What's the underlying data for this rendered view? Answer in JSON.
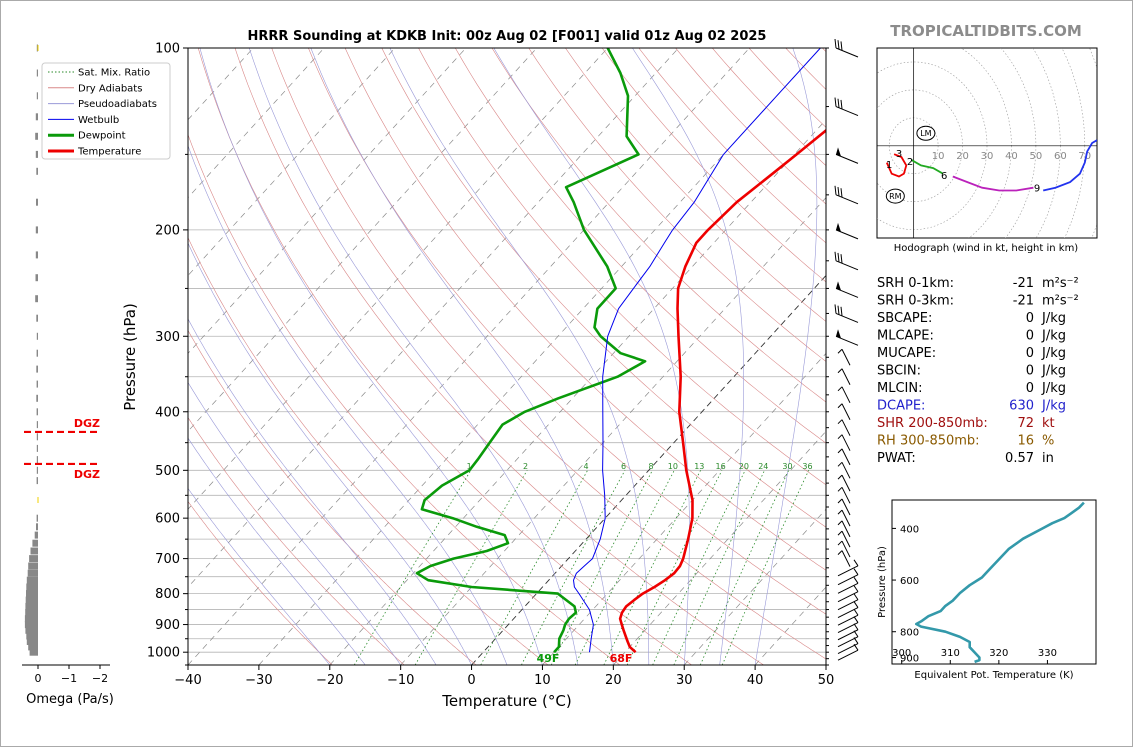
{
  "title": "HRRR Sounding at KDKB Init: 00z Aug 02 [F001] valid 01z Aug 02 2025",
  "brand": "TROPICALTIDBITS.COM",
  "skewt": {
    "xlabel": "Temperature (°C)",
    "ylabel": "Pressure (hPa)",
    "xlim": [
      -40,
      50
    ],
    "ylim": [
      1050,
      100
    ],
    "x_ticks": [
      "−40",
      "−30",
      "−20",
      "−10",
      "0",
      "10",
      "20",
      "30",
      "40",
      "50"
    ],
    "y_ticks": [
      "100",
      "200",
      "300",
      "400",
      "500",
      "600",
      "700",
      "800",
      "900",
      "1000"
    ],
    "mixing_ratio_labels": [
      "1",
      "2",
      "4",
      "6",
      "8",
      "10",
      "13",
      "16",
      "20",
      "24",
      "30",
      "36"
    ],
    "surface_dewpoint_label": "49F",
    "surface_temperature_label": "68F"
  },
  "legend": {
    "placement": "upper-left",
    "items": [
      {
        "label": "Sat. Mix. Ratio",
        "color": "#2a8a2a",
        "style": "dotted",
        "width": 1
      },
      {
        "label": "Dry Adiabats",
        "color": "#d98888",
        "style": "solid",
        "width": 1
      },
      {
        "label": "Pseudoadiabats",
        "color": "#9a9ad8",
        "style": "solid",
        "width": 1
      },
      {
        "label": "Wetbulb",
        "color": "#0000ee",
        "style": "solid",
        "width": 1
      },
      {
        "label": "Dewpoint",
        "color": "#0a9a0a",
        "style": "solid",
        "width": 3
      },
      {
        "label": "Temperature",
        "color": "#ee0000",
        "style": "solid",
        "width": 3
      }
    ]
  },
  "omega": {
    "xlabel": "Omega (Pa/s)",
    "x_ticks": [
      "0",
      "−1",
      "−2"
    ],
    "dgz_label": "DGZ",
    "dgz_pressures_hpa": [
      432,
      488
    ]
  },
  "hodograph": {
    "caption": "Hodograph (wind in kt, height in km)",
    "ring_labels": [
      "10",
      "20",
      "30",
      "40",
      "50",
      "60",
      "70"
    ],
    "height_labels": [
      "1",
      "2",
      "3",
      "6",
      "9"
    ],
    "storm_motion_labels": [
      "LM",
      "RM"
    ]
  },
  "indices": [
    {
      "name": "SRH 0-1km:",
      "value": "-21",
      "unit": "m²s⁻²",
      "color": "#000000"
    },
    {
      "name": "SRH 0-3km:",
      "value": "-21",
      "unit": "m²s⁻²",
      "color": "#000000"
    },
    {
      "name": "SBCAPE:",
      "value": "0",
      "unit": "J/kg",
      "color": "#000000"
    },
    {
      "name": "MLCAPE:",
      "value": "0",
      "unit": "J/kg",
      "color": "#000000"
    },
    {
      "name": "MUCAPE:",
      "value": "0",
      "unit": "J/kg",
      "color": "#000000"
    },
    {
      "name": "SBCIN:",
      "value": "0",
      "unit": "J/kg",
      "color": "#000000"
    },
    {
      "name": "MLCIN:",
      "value": "0",
      "unit": "J/kg",
      "color": "#000000"
    },
    {
      "name": "DCAPE:",
      "value": "630",
      "unit": "J/kg",
      "color": "#2222cc"
    },
    {
      "name": "SHR 200-850mb:",
      "value": "72",
      "unit": "kt",
      "color": "#a01010"
    },
    {
      "name": "RH 300-850mb:",
      "value": "16",
      "unit": "%",
      "color": "#8a5a00"
    },
    {
      "name": "PWAT:",
      "value": "0.57",
      "unit": "in",
      "color": "#000000"
    }
  ],
  "theta_e": {
    "xlabel": "Equivalent Pot. Temperature (K)",
    "ylabel": "Pressure (hPa)",
    "x_ticks": [
      "300",
      "310",
      "320",
      "330"
    ],
    "y_ticks": [
      "400",
      "600",
      "800",
      "900"
    ],
    "xlim": [
      298,
      340
    ],
    "ylim": [
      925,
      290
    ]
  },
  "chart_data": [
    {
      "type": "line",
      "title": "HRRR Sounding at KDKB Init: 00z Aug 02 [F001] valid 01z Aug 02 2025",
      "xlabel": "Temperature (°C)",
      "ylabel": "Pressure (hPa)",
      "xlim": [
        -40,
        50
      ],
      "ylim": [
        1050,
        100
      ],
      "y_scale": "log",
      "grid": true,
      "legend_placement": "upper-left",
      "series": [
        {
          "name": "Temperature",
          "color": "#ee0000",
          "points": [
            [
              1000,
              21.5
            ],
            [
              980,
              20
            ],
            [
              960,
              19
            ],
            [
              940,
              18
            ],
            [
              920,
              17
            ],
            [
              900,
              16
            ],
            [
              880,
              15
            ],
            [
              860,
              14.5
            ],
            [
              840,
              14.3
            ],
            [
              820,
              14.6
            ],
            [
              800,
              15
            ],
            [
              780,
              15.8
            ],
            [
              760,
              16.4
            ],
            [
              740,
              16.8
            ],
            [
              720,
              16.7
            ],
            [
              700,
              16.2
            ],
            [
              650,
              14.4
            ],
            [
              600,
              12.3
            ],
            [
              560,
              10
            ],
            [
              500,
              5.3
            ],
            [
              450,
              1.3
            ],
            [
              400,
              -3.2
            ],
            [
              350,
              -7.5
            ],
            [
              300,
              -13
            ],
            [
              270,
              -16.7
            ],
            [
              250,
              -19.2
            ],
            [
              230,
              -21
            ],
            [
              210,
              -22.5
            ],
            [
              200,
              -22.5
            ],
            [
              180,
              -22
            ],
            [
              160,
              -20.5
            ],
            [
              150,
              -19.7
            ],
            [
              130,
              -18
            ],
            [
              120,
              -17
            ],
            [
              110,
              -16.4
            ],
            [
              100,
              -15.6
            ]
          ]
        },
        {
          "name": "Dewpoint",
          "color": "#0a9a0a",
          "points": [
            [
              1000,
              10
            ],
            [
              980,
              10
            ],
            [
              950,
              9
            ],
            [
              920,
              8.5
            ],
            [
              900,
              8
            ],
            [
              880,
              7.8
            ],
            [
              860,
              8
            ],
            [
              840,
              7
            ],
            [
              800,
              3
            ],
            [
              780,
              -10
            ],
            [
              760,
              -17
            ],
            [
              740,
              -19.5
            ],
            [
              720,
              -18.5
            ],
            [
              700,
              -16.2
            ],
            [
              680,
              -12.5
            ],
            [
              660,
              -10.5
            ],
            [
              640,
              -12
            ],
            [
              620,
              -17
            ],
            [
              600,
              -21.5
            ],
            [
              580,
              -27
            ],
            [
              560,
              -27.8
            ],
            [
              530,
              -27.2
            ],
            [
              500,
              -25.3
            ],
            [
              480,
              -25.5
            ],
            [
              450,
              -26
            ],
            [
              420,
              -26.5
            ],
            [
              400,
              -25
            ],
            [
              380,
              -22
            ],
            [
              350,
              -16.4
            ],
            [
              330,
              -14.5
            ],
            [
              320,
              -19
            ],
            [
              300,
              -24
            ],
            [
              290,
              -26
            ],
            [
              270,
              -28
            ],
            [
              250,
              -28
            ],
            [
              230,
              -32
            ],
            [
              200,
              -40
            ],
            [
              180,
              -45
            ],
            [
              170,
              -48
            ],
            [
              150,
              -42
            ],
            [
              140,
              -46
            ],
            [
              120,
              -51
            ],
            [
              110,
              -55
            ],
            [
              100,
              -60
            ]
          ]
        },
        {
          "name": "Wetbulb",
          "color": "#0000ee",
          "points": [
            [
              1000,
              15
            ],
            [
              950,
              13.5
            ],
            [
              900,
              12
            ],
            [
              850,
              9.5
            ],
            [
              800,
              6
            ],
            [
              780,
              4.5
            ],
            [
              760,
              3.5
            ],
            [
              740,
              3
            ],
            [
              720,
              3.2
            ],
            [
              700,
              3.4
            ],
            [
              650,
              2
            ],
            [
              600,
              0
            ],
            [
              550,
              -3
            ],
            [
              500,
              -6.5
            ],
            [
              450,
              -10
            ],
            [
              400,
              -14
            ],
            [
              350,
              -18.5
            ],
            [
              300,
              -23
            ],
            [
              270,
              -25
            ],
            [
              250,
              -25.5
            ],
            [
              230,
              -26
            ],
            [
              210,
              -27
            ],
            [
              200,
              -27.5
            ],
            [
              180,
              -28
            ],
            [
              150,
              -30
            ],
            [
              120,
              -30
            ],
            [
              100,
              -30
            ]
          ]
        }
      ]
    },
    {
      "type": "line",
      "xlabel": "Equivalent Pot. Temperature (K)",
      "ylabel": "Pressure (hPa)",
      "xlim": [
        298,
        340
      ],
      "ylim": [
        925,
        290
      ],
      "series": [
        {
          "name": "",
          "color": "#3399aa",
          "points": [
            [
              917,
              315
            ],
            [
              910,
              316
            ],
            [
              900,
              316
            ],
            [
              880,
              315
            ],
            [
              860,
              314
            ],
            [
              840,
              314
            ],
            [
              820,
              312
            ],
            [
              800,
              309
            ],
            [
              780,
              304
            ],
            [
              770,
              303
            ],
            [
              760,
              304
            ],
            [
              740,
              305.5
            ],
            [
              720,
              308
            ],
            [
              700,
              309
            ],
            [
              680,
              310.5
            ],
            [
              650,
              312
            ],
            [
              620,
              314
            ],
            [
              590,
              316.5
            ],
            [
              560,
              318
            ],
            [
              520,
              320
            ],
            [
              480,
              322
            ],
            [
              440,
              325
            ],
            [
              400,
              329
            ],
            [
              380,
              331
            ],
            [
              360,
              333.5
            ],
            [
              340,
              335
            ],
            [
              320,
              336.5
            ],
            [
              300,
              337.5
            ]
          ]
        }
      ]
    },
    {
      "type": "line",
      "title": "Hodograph (wind in kt, height in km)",
      "xlim": [
        -15,
        75
      ],
      "ylim": [
        -33,
        35
      ],
      "series": [
        {
          "name": "",
          "color": "#ee0000",
          "points": [
            [
              -11,
              -6
            ],
            [
              -9,
              -10
            ],
            [
              -6,
              -11
            ],
            [
              -4,
              -10
            ],
            [
              -3,
              -7
            ],
            [
              -5,
              -4
            ],
            [
              -8,
              -3
            ]
          ]
        },
        {
          "name": "",
          "color": "#22aa22",
          "points": [
            [
              -1,
              -5
            ],
            [
              3,
              -7
            ],
            [
              8,
              -8
            ],
            [
              12,
              -10
            ]
          ]
        },
        {
          "name": "",
          "color": "#bb22bb",
          "points": [
            [
              16,
              -11
            ],
            [
              22,
              -13
            ],
            [
              28,
              -15
            ],
            [
              35,
              -16
            ],
            [
              42,
              -16
            ],
            [
              49,
              -15
            ]
          ]
        },
        {
          "name": "",
          "color": "#2233ee",
          "points": [
            [
              53,
              -16
            ],
            [
              58,
              -15
            ],
            [
              64,
              -13
            ],
            [
              68,
              -10
            ],
            [
              70,
              -6
            ],
            [
              71,
              -2
            ],
            [
              73,
              1
            ],
            [
              75,
              2
            ]
          ]
        }
      ]
    },
    {
      "type": "bar",
      "xlabel": "Omega (Pa/s)",
      "x_ticks": [
        "0",
        "−1",
        "−2"
      ],
      "series": [
        {
          "name": "",
          "color": "#888888",
          "points": [
            [
              1000,
              0.3
            ],
            [
              980,
              0.35
            ],
            [
              960,
              0.4
            ],
            [
              940,
              0.42
            ],
            [
              920,
              0.45
            ],
            [
              900,
              0.47
            ],
            [
              880,
              0.47
            ],
            [
              860,
              0.46
            ],
            [
              840,
              0.45
            ],
            [
              820,
              0.44
            ],
            [
              800,
              0.43
            ],
            [
              780,
              0.42
            ],
            [
              760,
              0.4
            ],
            [
              740,
              0.37
            ],
            [
              720,
              0.35
            ],
            [
              700,
              0.32
            ],
            [
              680,
              0.27
            ],
            [
              660,
              0.2
            ],
            [
              640,
              0.12
            ],
            [
              620,
              0.07
            ],
            [
              600,
              0.05
            ],
            [
              520,
              0.05
            ],
            [
              500,
              0.03
            ],
            [
              480,
              0.03
            ],
            [
              460,
              0.03
            ],
            [
              440,
              0.03
            ],
            [
              420,
              0.04
            ],
            [
              400,
              0.05
            ],
            [
              380,
              0.06
            ],
            [
              360,
              0.05
            ],
            [
              340,
              0.06
            ],
            [
              320,
              0.05
            ],
            [
              300,
              0.04
            ],
            [
              280,
              0.06
            ],
            [
              260,
              0.1
            ],
            [
              240,
              0.09
            ],
            [
              220,
              0.08
            ],
            [
              200,
              0.08
            ],
            [
              180,
              0.07
            ],
            [
              160,
              0.06
            ],
            [
              150,
              0.08
            ],
            [
              140,
              0.1
            ],
            [
              130,
              0.08
            ],
            [
              120,
              0.04
            ],
            [
              110,
              0.03
            ],
            [
              100,
              0.03
            ]
          ]
        }
      ]
    }
  ]
}
